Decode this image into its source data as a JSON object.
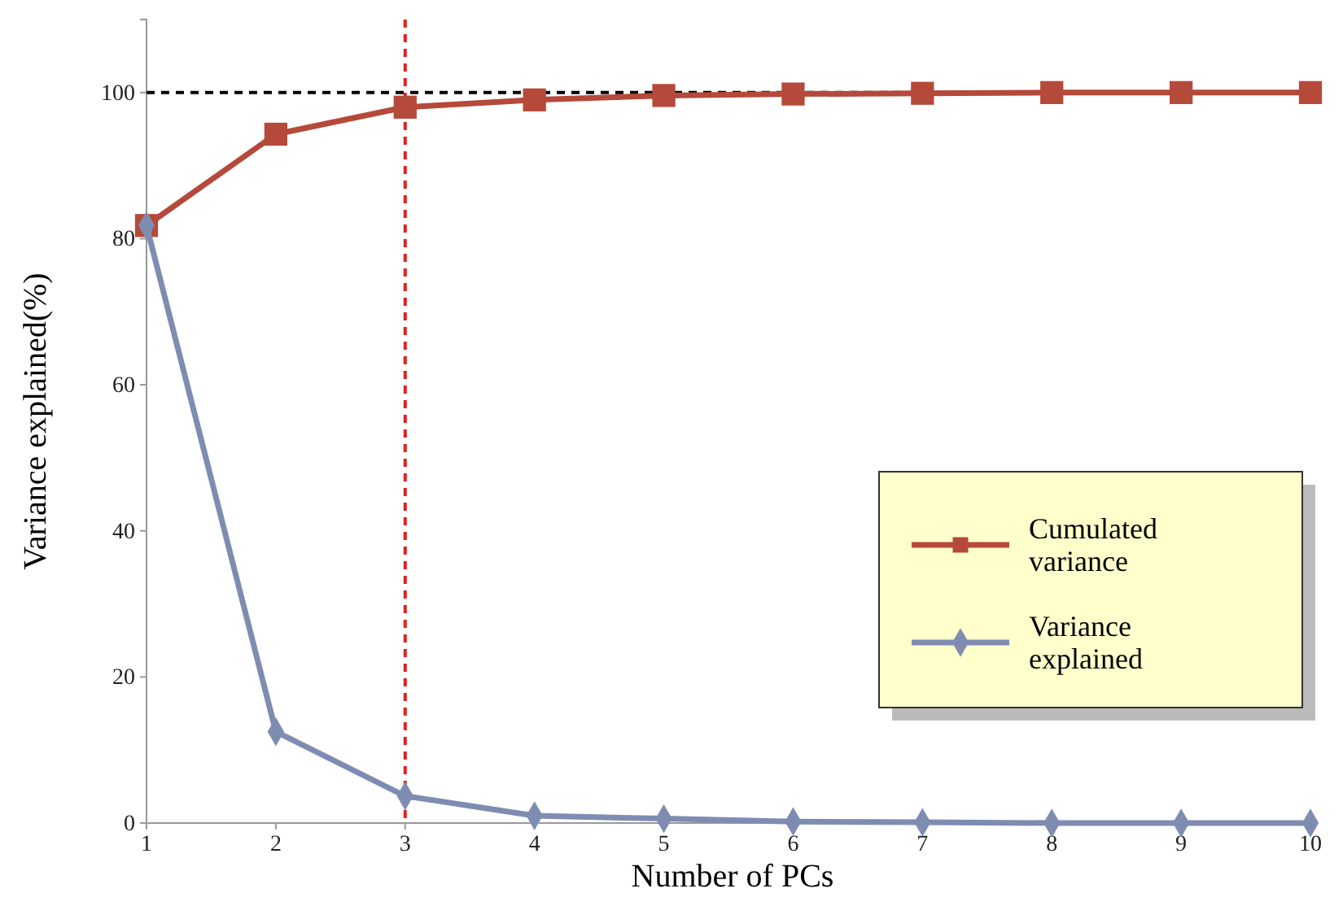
{
  "chart_data": {
    "type": "line",
    "xlabel": "Number of PCs",
    "ylabel": "Variance explained(%)",
    "x": [
      1,
      2,
      3,
      4,
      5,
      6,
      7,
      8,
      9,
      10
    ],
    "series": [
      {
        "name": "Cumulated variance",
        "color": "#b5493a",
        "marker": "square",
        "values": [
          81.8,
          94.3,
          98,
          99,
          99.6,
          99.8,
          99.9,
          100,
          100,
          100
        ]
      },
      {
        "name": "Variance explained",
        "color": "#7f8cb2",
        "marker": "diamond",
        "values": [
          81.8,
          12.5,
          3.7,
          1,
          0.6,
          0.2,
          0.1,
          0,
          0,
          0
        ]
      }
    ],
    "xlim": [
      1,
      10
    ],
    "xticks": [
      1,
      2,
      3,
      4,
      5,
      6,
      7,
      8,
      9,
      10
    ],
    "ylim": [
      0,
      110
    ],
    "yticks": [
      0,
      20,
      40,
      60,
      80,
      100
    ],
    "ref_lines": [
      {
        "axis": "y",
        "value": 100,
        "color": "#000000",
        "line_style": "dashed"
      },
      {
        "axis": "x",
        "value": 3,
        "color": "#e02020",
        "line_style": "dashed"
      }
    ],
    "grid": false,
    "legend": "bottom right",
    "line_style": "solid"
  }
}
